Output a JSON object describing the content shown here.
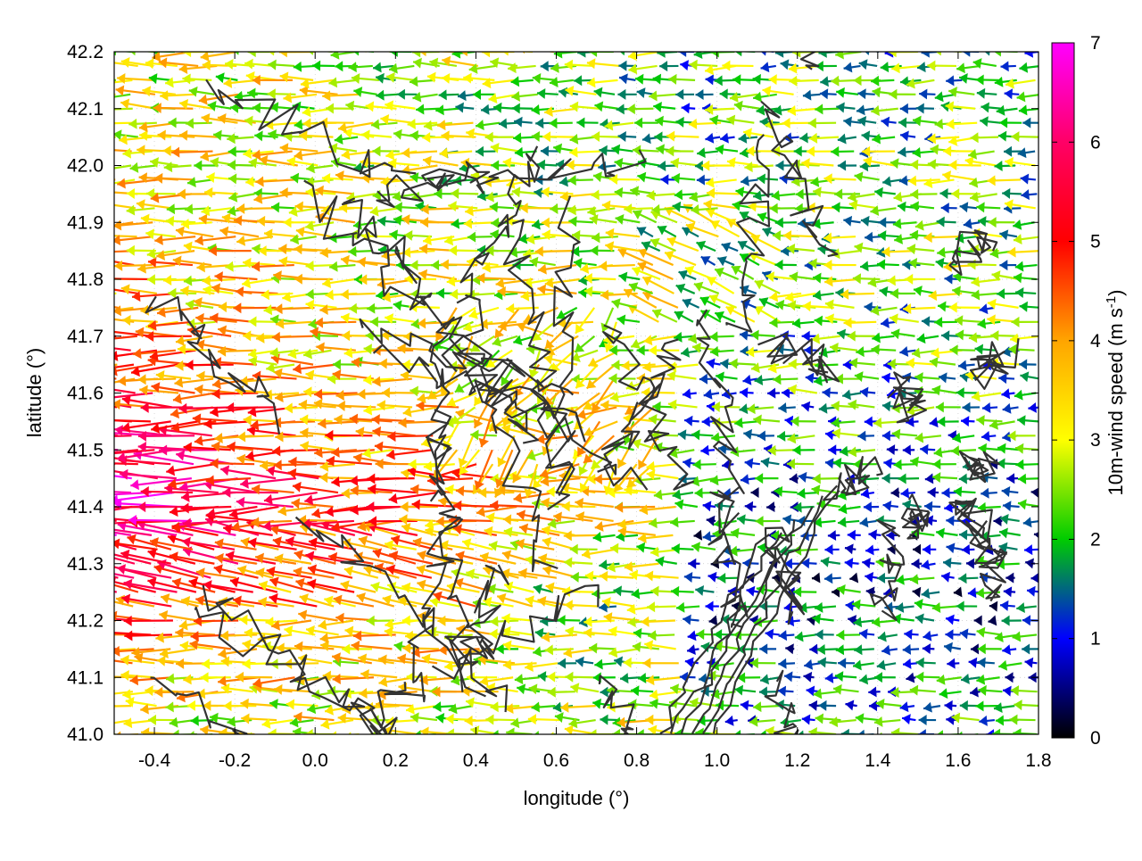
{
  "chart_data": {
    "type": "vector-field",
    "xlabel": "longitude (°)",
    "ylabel": "latitude (°)",
    "xlim": [
      -0.5,
      1.8
    ],
    "ylim": [
      41.0,
      42.2
    ],
    "x_ticks": [
      "-0.4",
      "-0.2",
      "0.0",
      "0.2",
      "0.4",
      "0.6",
      "0.8",
      "1.0",
      "1.2",
      "1.4",
      "1.6",
      "1.8"
    ],
    "x_tick_values": [
      -0.4,
      -0.2,
      0.0,
      0.2,
      0.4,
      0.6,
      0.8,
      1.0,
      1.2,
      1.4,
      1.6,
      1.8
    ],
    "y_ticks": [
      "41.0",
      "41.1",
      "41.2",
      "41.3",
      "41.4",
      "41.5",
      "41.6",
      "41.7",
      "41.8",
      "41.9",
      "42.0",
      "42.1",
      "42.2"
    ],
    "y_tick_values": [
      41.0,
      41.1,
      41.2,
      41.3,
      41.4,
      41.5,
      41.6,
      41.7,
      41.8,
      41.9,
      42.0,
      42.1,
      42.2
    ],
    "grid": true,
    "colorbar": {
      "label": "10m-wind speed (m s",
      "label_sup": "-1",
      "label_close": ")",
      "range": [
        0,
        7
      ],
      "ticks": [
        "0",
        "1",
        "2",
        "3",
        "4",
        "5",
        "6",
        "7"
      ],
      "tick_values": [
        0,
        1,
        2,
        3,
        4,
        5,
        6,
        7
      ],
      "colors": [
        "#000000",
        "#0000ff",
        "#00cc00",
        "#ffff00",
        "#ffa500",
        "#ff0000",
        "#ff00ff"
      ]
    },
    "grid_resolution": [
      0.05,
      0.025
    ],
    "wind_field_description": "mostly westward 10 m winds; strongest (5-7 m/s) in the west at lat 41.2-41.6, weak (0-2 m/s) east of lon 1.0",
    "contour_color": "#333333"
  }
}
